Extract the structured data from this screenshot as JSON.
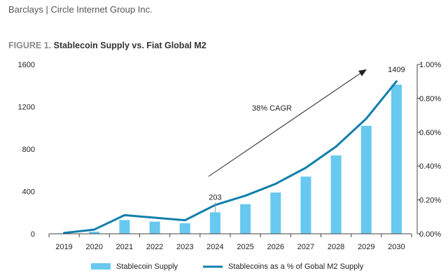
{
  "header": {
    "text": "Barclays | Circle Internet Group Inc."
  },
  "figure": {
    "number": "FIGURE 1.",
    "title": "Stablecoin Supply vs. Fiat Global M2"
  },
  "annotation": {
    "cagr": "38% CAGR"
  },
  "colors": {
    "bar": "#67c9f0",
    "line": "#0f7fab",
    "arrow": "#222222"
  },
  "chart_data": {
    "type": "bar",
    "title": "Stablecoin Supply vs. Fiat Global M2",
    "categories": [
      "2019",
      "2020",
      "2021",
      "2022",
      "2023",
      "2024",
      "2025",
      "2026",
      "2027",
      "2028",
      "2029",
      "2030"
    ],
    "series": [
      {
        "name": "Stablecoin Supply",
        "type": "bar",
        "axis": "left",
        "values": [
          5,
          20,
          130,
          115,
          100,
          203,
          280,
          390,
          540,
          740,
          1020,
          1409
        ]
      },
      {
        "name": "Stablecoins as a % of Gobal M2 Supply",
        "type": "line",
        "axis": "right",
        "values": [
          0.005,
          0.025,
          0.11,
          0.095,
          0.08,
          0.17,
          0.225,
          0.295,
          0.39,
          0.515,
          0.68,
          0.9
        ]
      }
    ],
    "left_axis": {
      "min": 0,
      "max": 1600,
      "ticks": [
        "0",
        "400",
        "800",
        "1200",
        "1600"
      ]
    },
    "right_axis": {
      "min": 0,
      "max": 1,
      "ticks": [
        "0.00%",
        "0.20%",
        "0.40%",
        "0.60%",
        "0.80%",
        "1.00%"
      ]
    },
    "data_labels": [
      {
        "category": "2024",
        "text": "203"
      },
      {
        "category": "2030",
        "text": "1409"
      }
    ],
    "legend": {
      "position": "bottom"
    },
    "grid": false
  }
}
